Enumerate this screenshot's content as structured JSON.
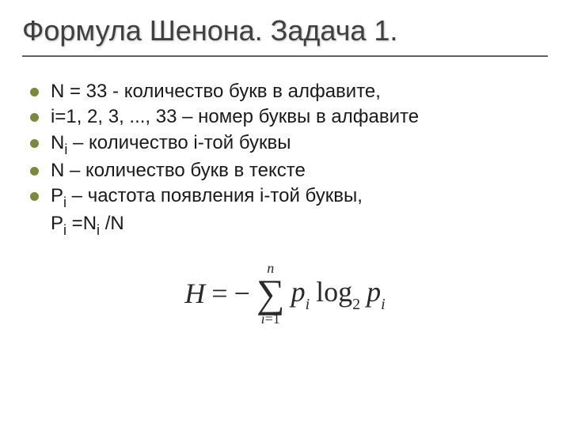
{
  "slide": {
    "title": "Формула Шенона. Задача 1.",
    "colors": {
      "title_color": "#3f3f3f",
      "underline_color": "#606060",
      "bullet_color": "#7a8a3a",
      "text_color": "#1a1a1a",
      "formula_color": "#2a2a2a",
      "background": "#ffffff"
    },
    "typography": {
      "title_fontsize": 36,
      "body_fontsize": 24,
      "formula_fontsize": 36,
      "title_font": "Arial",
      "formula_font": "Times New Roman"
    },
    "bullets": [
      {
        "text_pre": "N = 33 - количество букв в алфавите,",
        "has_dot": true
      },
      {
        "text_pre": "i=1, 2, 3, ..., 33 – номер буквы в алфавите",
        "has_dot": true
      },
      {
        "text_pre": "N",
        "sub": "i",
        "text_post": " – количество i-той буквы",
        "has_dot": true
      },
      {
        "text_pre": "N – количество букв в тексте",
        "has_dot": true
      },
      {
        "text_pre": "P",
        "sub": "i",
        "text_post": " – частота появления i-той буквы,",
        "has_dot": true
      },
      {
        "text_pre": "P",
        "sub": "i",
        "mid": " =N",
        "sub2": "i",
        "text_post": " /N",
        "has_dot": false
      }
    ],
    "formula": {
      "lhs_var": "H",
      "equals": "=",
      "neg": "−",
      "sum_top": "n",
      "sum_bottom_var": "i",
      "sum_bottom_eq": "=1",
      "p1_var": "p",
      "p1_sub": "i",
      "log_text": "log",
      "log_base": "2",
      "p2_var": "p",
      "p2_sub": "i"
    }
  }
}
